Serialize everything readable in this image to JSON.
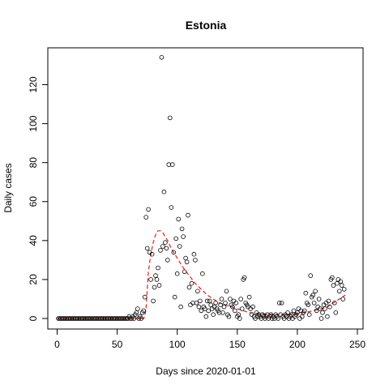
{
  "chart_data": {
    "type": "scatter",
    "title": "Estonia",
    "xlabel": "Days since 2020-01-01",
    "ylabel": "Daily cases",
    "xlim": [
      0,
      250
    ],
    "ylim": [
      0,
      135
    ],
    "xticks": [
      0,
      50,
      100,
      150,
      200,
      250
    ],
    "yticks": [
      0,
      20,
      40,
      60,
      80,
      100,
      120
    ],
    "grid": false,
    "series": [
      {
        "kind": "points",
        "color": "#000000",
        "points": [
          [
            1,
            0
          ],
          [
            2,
            0
          ],
          [
            3,
            0
          ],
          [
            4,
            0
          ],
          [
            5,
            0
          ],
          [
            6,
            0
          ],
          [
            7,
            0
          ],
          [
            8,
            0
          ],
          [
            9,
            0
          ],
          [
            10,
            0
          ],
          [
            11,
            0
          ],
          [
            12,
            0
          ],
          [
            13,
            0
          ],
          [
            14,
            0
          ],
          [
            15,
            0
          ],
          [
            16,
            0
          ],
          [
            17,
            0
          ],
          [
            18,
            0
          ],
          [
            19,
            0
          ],
          [
            20,
            0
          ],
          [
            21,
            0
          ],
          [
            22,
            0
          ],
          [
            23,
            0
          ],
          [
            24,
            0
          ],
          [
            25,
            0
          ],
          [
            26,
            0
          ],
          [
            27,
            0
          ],
          [
            28,
            0
          ],
          [
            29,
            0
          ],
          [
            30,
            0
          ],
          [
            31,
            0
          ],
          [
            32,
            0
          ],
          [
            33,
            0
          ],
          [
            34,
            0
          ],
          [
            35,
            0
          ],
          [
            36,
            0
          ],
          [
            37,
            0
          ],
          [
            38,
            0
          ],
          [
            39,
            0
          ],
          [
            40,
            0
          ],
          [
            41,
            0
          ],
          [
            42,
            0
          ],
          [
            43,
            0
          ],
          [
            44,
            0
          ],
          [
            45,
            0
          ],
          [
            46,
            0
          ],
          [
            47,
            0
          ],
          [
            48,
            0
          ],
          [
            49,
            0
          ],
          [
            50,
            0
          ],
          [
            51,
            0
          ],
          [
            52,
            0
          ],
          [
            53,
            0
          ],
          [
            54,
            0
          ],
          [
            55,
            0
          ],
          [
            56,
            0
          ],
          [
            57,
            0
          ],
          [
            58,
            0
          ],
          [
            59,
            0
          ],
          [
            60,
            1
          ],
          [
            61,
            0
          ],
          [
            62,
            0
          ],
          [
            63,
            1
          ],
          [
            64,
            0
          ],
          [
            65,
            2
          ],
          [
            66,
            3
          ],
          [
            67,
            5
          ],
          [
            68,
            0
          ],
          [
            69,
            1
          ],
          [
            70,
            0
          ],
          [
            71,
            3
          ],
          [
            72,
            4
          ],
          [
            73,
            11
          ],
          [
            74,
            52
          ],
          [
            75,
            36
          ],
          [
            76,
            56
          ],
          [
            77,
            34
          ],
          [
            78,
            20
          ],
          [
            79,
            33
          ],
          [
            80,
            9
          ],
          [
            81,
            16
          ],
          [
            82,
            22
          ],
          [
            83,
            20
          ],
          [
            84,
            26
          ],
          [
            85,
            17
          ],
          [
            86,
            35
          ],
          [
            87,
            134
          ],
          [
            88,
            37
          ],
          [
            89,
            65
          ],
          [
            90,
            39
          ],
          [
            91,
            36
          ],
          [
            92,
            30
          ],
          [
            93,
            79
          ],
          [
            94,
            103
          ],
          [
            95,
            57
          ],
          [
            96,
            79
          ],
          [
            97,
            34
          ],
          [
            98,
            11
          ],
          [
            99,
            41
          ],
          [
            100,
            23
          ],
          [
            101,
            51
          ],
          [
            102,
            37
          ],
          [
            103,
            6
          ],
          [
            104,
            46
          ],
          [
            105,
            42
          ],
          [
            106,
            24
          ],
          [
            107,
            31
          ],
          [
            108,
            29
          ],
          [
            109,
            53
          ],
          [
            110,
            16
          ],
          [
            111,
            7
          ],
          [
            112,
            18
          ],
          [
            113,
            8
          ],
          [
            114,
            33
          ],
          [
            115,
            30
          ],
          [
            116,
            8
          ],
          [
            117,
            14
          ],
          [
            118,
            6
          ],
          [
            119,
            9
          ],
          [
            120,
            4
          ],
          [
            121,
            23
          ],
          [
            122,
            6
          ],
          [
            123,
            5
          ],
          [
            124,
            1
          ],
          [
            125,
            9
          ],
          [
            126,
            4
          ],
          [
            127,
            9
          ],
          [
            128,
            7
          ],
          [
            129,
            5
          ],
          [
            130,
            2
          ],
          [
            131,
            6
          ],
          [
            132,
            8
          ],
          [
            133,
            5
          ],
          [
            134,
            4
          ],
          [
            135,
            3
          ],
          [
            136,
            7
          ],
          [
            137,
            10
          ],
          [
            138,
            3
          ],
          [
            139,
            6
          ],
          [
            140,
            8
          ],
          [
            141,
            14
          ],
          [
            142,
            2
          ],
          [
            143,
            1
          ],
          [
            144,
            10
          ],
          [
            145,
            7
          ],
          [
            146,
            6
          ],
          [
            147,
            9
          ],
          [
            148,
            4
          ],
          [
            149,
            8
          ],
          [
            150,
            1
          ],
          [
            151,
            2
          ],
          [
            152,
            0
          ],
          [
            153,
            10
          ],
          [
            154,
            5
          ],
          [
            155,
            20
          ],
          [
            156,
            21
          ],
          [
            157,
            8
          ],
          [
            158,
            7
          ],
          [
            159,
            6
          ],
          [
            160,
            11
          ],
          [
            161,
            5
          ],
          [
            162,
            2
          ],
          [
            163,
            6
          ],
          [
            164,
            1
          ],
          [
            165,
            0
          ],
          [
            166,
            3
          ],
          [
            167,
            1
          ],
          [
            168,
            2
          ],
          [
            169,
            1
          ],
          [
            170,
            0
          ],
          [
            171,
            2
          ],
          [
            172,
            1
          ],
          [
            173,
            0
          ],
          [
            174,
            1
          ],
          [
            175,
            2
          ],
          [
            176,
            0
          ],
          [
            177,
            1
          ],
          [
            178,
            2
          ],
          [
            179,
            0
          ],
          [
            180,
            1
          ],
          [
            181,
            0
          ],
          [
            182,
            2
          ],
          [
            183,
            1
          ],
          [
            184,
            0
          ],
          [
            185,
            8
          ],
          [
            186,
            2
          ],
          [
            187,
            8
          ],
          [
            188,
            1
          ],
          [
            189,
            0
          ],
          [
            190,
            2
          ],
          [
            191,
            1
          ],
          [
            192,
            3
          ],
          [
            193,
            0
          ],
          [
            194,
            1
          ],
          [
            195,
            2
          ],
          [
            196,
            0
          ],
          [
            197,
            4
          ],
          [
            198,
            1
          ],
          [
            199,
            2
          ],
          [
            200,
            3
          ],
          [
            201,
            5
          ],
          [
            202,
            0
          ],
          [
            203,
            4
          ],
          [
            204,
            1
          ],
          [
            205,
            3
          ],
          [
            206,
            4
          ],
          [
            207,
            13
          ],
          [
            208,
            8
          ],
          [
            209,
            7
          ],
          [
            210,
            2
          ],
          [
            211,
            22
          ],
          [
            212,
            11
          ],
          [
            213,
            12
          ],
          [
            214,
            8
          ],
          [
            215,
            14
          ],
          [
            216,
            4
          ],
          [
            217,
            6
          ],
          [
            218,
            10
          ],
          [
            219,
            5
          ],
          [
            220,
            0
          ],
          [
            221,
            3
          ],
          [
            222,
            7
          ],
          [
            223,
            5
          ],
          [
            224,
            8
          ],
          [
            225,
            1
          ],
          [
            226,
            9
          ],
          [
            227,
            6
          ],
          [
            228,
            20
          ],
          [
            229,
            21
          ],
          [
            230,
            17
          ],
          [
            231,
            8
          ],
          [
            232,
            3
          ],
          [
            233,
            18
          ],
          [
            234,
            20
          ],
          [
            235,
            14
          ],
          [
            236,
            19
          ],
          [
            237,
            17
          ],
          [
            238,
            10
          ],
          [
            239,
            15
          ]
        ]
      },
      {
        "kind": "fit-line",
        "color": "#e0201f",
        "points": [
          [
            0,
            0
          ],
          [
            72,
            0
          ],
          [
            73,
            1
          ],
          [
            74,
            5
          ],
          [
            75,
            15
          ],
          [
            76,
            24
          ],
          [
            78,
            33
          ],
          [
            80,
            39
          ],
          [
            82,
            43
          ],
          [
            84,
            45
          ],
          [
            86,
            45
          ],
          [
            88,
            44
          ],
          [
            90,
            42
          ],
          [
            92,
            40
          ],
          [
            95,
            36
          ],
          [
            100,
            31
          ],
          [
            105,
            26
          ],
          [
            110,
            22
          ],
          [
            115,
            18
          ],
          [
            120,
            15
          ],
          [
            125,
            12
          ],
          [
            130,
            10
          ],
          [
            135,
            8
          ],
          [
            140,
            7
          ],
          [
            145,
            6
          ],
          [
            150,
            5
          ],
          [
            155,
            4
          ],
          [
            160,
            3
          ],
          [
            170,
            2.5
          ],
          [
            180,
            2
          ],
          [
            190,
            2
          ],
          [
            200,
            2.5
          ],
          [
            210,
            3.5
          ],
          [
            220,
            5
          ],
          [
            225,
            6
          ],
          [
            230,
            8
          ],
          [
            235,
            10
          ],
          [
            240,
            12
          ]
        ]
      }
    ]
  }
}
